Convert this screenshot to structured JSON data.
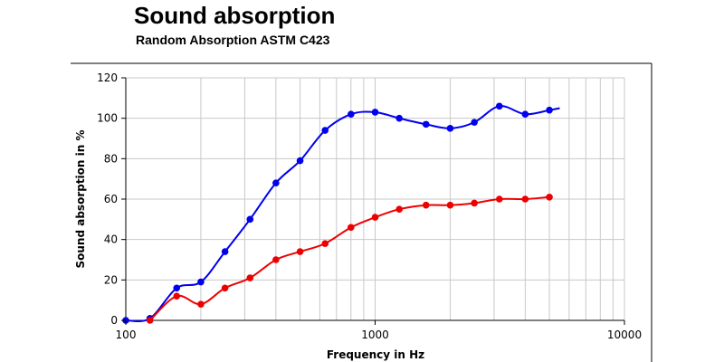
{
  "chart_data": {
    "type": "line",
    "title": "Sound absorption",
    "subtitle": "Random Absorption ASTM C423",
    "xlabel": "Frequency in Hz",
    "ylabel": "Sound absorption in %",
    "x_scale": "log",
    "xlim": [
      100,
      10000
    ],
    "ylim": [
      0,
      120
    ],
    "x_ticks": [
      "100",
      "1000",
      "10000"
    ],
    "y_ticks": [
      "0",
      "20",
      "40",
      "60",
      "80",
      "100",
      "120"
    ],
    "grid": true,
    "legend": "none",
    "series": [
      {
        "color": "#0000ee",
        "x": [
          100,
          125,
          160,
          200,
          250,
          315,
          400,
          500,
          630,
          800,
          1000,
          1250,
          1600,
          2000,
          2500,
          3150,
          4000,
          5000
        ],
        "y": [
          0,
          1,
          16,
          19,
          34,
          50,
          68,
          79,
          94,
          102,
          103,
          100,
          97,
          95,
          98,
          106,
          102,
          104
        ],
        "curve_end": [
          5500,
          105
        ]
      },
      {
        "color": "#ee0000",
        "x": [
          125,
          160,
          200,
          250,
          315,
          400,
          500,
          630,
          800,
          1000,
          1250,
          1600,
          2000,
          2500,
          3150,
          4000,
          5000
        ],
        "y": [
          0,
          12,
          8,
          16,
          21,
          30,
          34,
          38,
          46,
          51,
          55,
          57,
          57,
          58,
          60,
          60,
          61
        ]
      }
    ]
  }
}
